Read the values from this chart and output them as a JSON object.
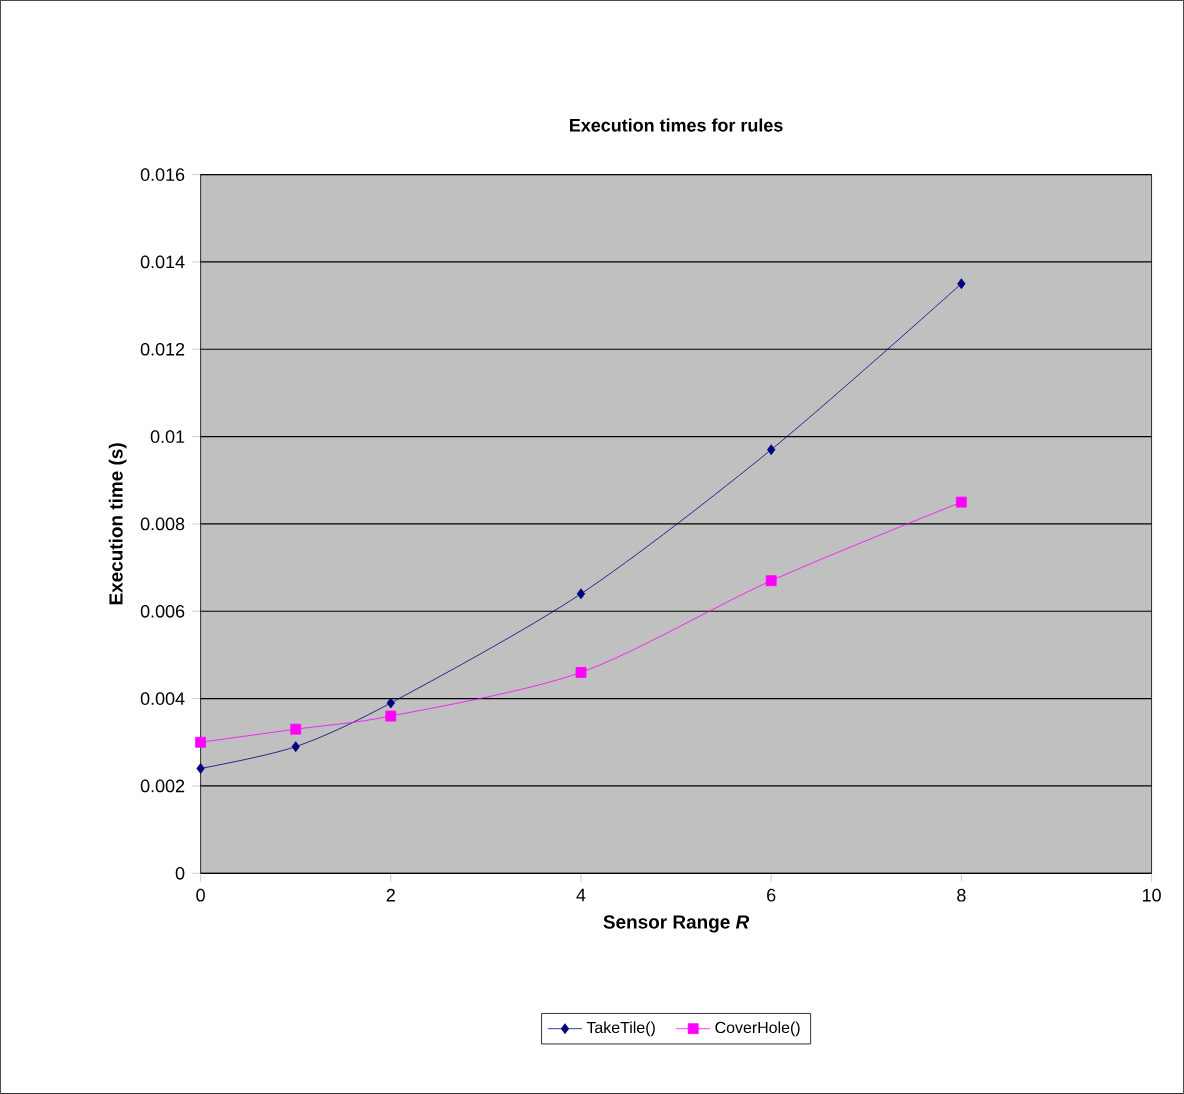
{
  "chart_data": {
    "type": "line",
    "title": "Execution times for rules",
    "xlabel": "Sensor Range *R*",
    "ylabel": "Execution time (s)",
    "x": [
      0,
      1,
      2,
      4,
      6,
      8
    ],
    "series": [
      {
        "name": "TakeTile()",
        "color": "#000080",
        "marker": "diamond",
        "values": [
          0.0024,
          0.0029,
          0.0039,
          0.0064,
          0.0097,
          0.0135
        ]
      },
      {
        "name": "CoverHole()",
        "color": "#ff00ff",
        "marker": "square",
        "values": [
          0.003,
          0.0033,
          0.0036,
          0.0046,
          0.0067,
          0.0085
        ]
      }
    ],
    "xlim": [
      0,
      10
    ],
    "xticks": [
      0,
      2,
      4,
      6,
      8,
      10
    ],
    "ylim": [
      0,
      0.016
    ],
    "yticks": [
      0,
      0.002,
      0.004,
      0.006,
      0.008,
      0.01,
      0.012,
      0.014,
      0.016
    ],
    "grid": "y",
    "legend": "bottom",
    "line_style": "solid"
  }
}
